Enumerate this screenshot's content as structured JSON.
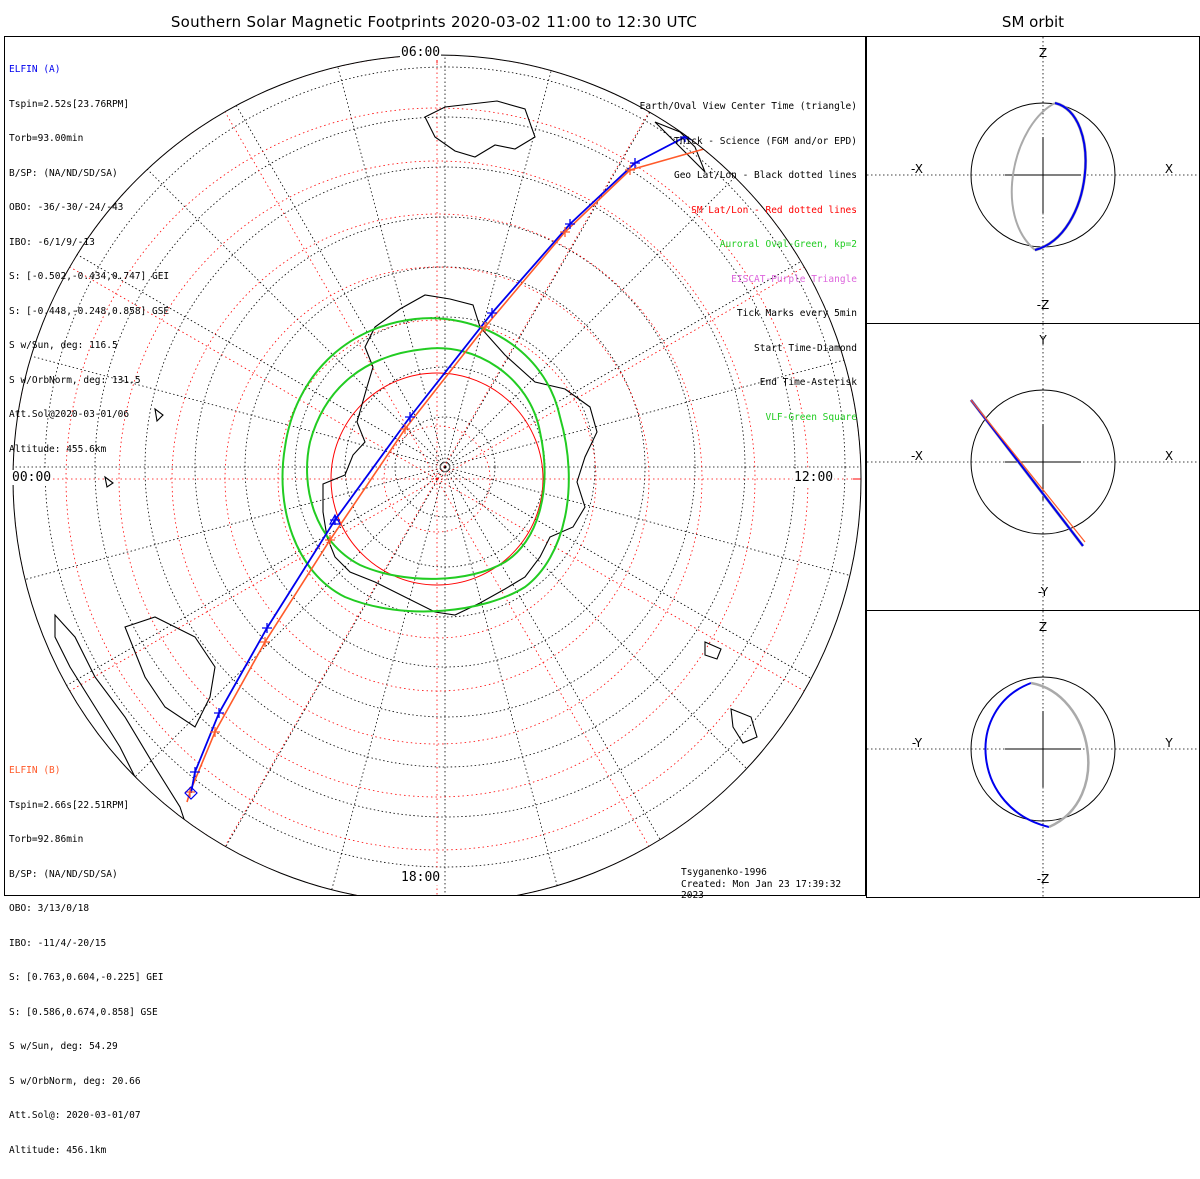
{
  "title": "Southern Solar Magnetic Footprints 2020-03-02 11:00 to 12:30 UTC",
  "orbit_title": "SM orbit",
  "colors": {
    "sat_a": "#0000ee",
    "sat_b": "#ff5a2a",
    "geo_grid": "#000000",
    "sm_grid": "#ff0000",
    "auroral_oval": "#22cc22",
    "eiscat": "#dd66dd",
    "vlf": "#22cc22",
    "orbit_gray": "#aaaaaa"
  },
  "elfin_a": {
    "lines": [
      "ELFIN (A)",
      "Tspin=2.52s[23.76RPM]",
      "Torb=93.00min",
      "B/SP: (NA/ND/SD/SA)",
      "OBO: -36/-30/-24/-43",
      "IBO: -6/1/9/-13",
      "S: [-0.502,-0.434,0.747] GEI",
      "S: [-0.448,-0.248,0.858] GSE",
      "S w/Sun, deg: 116.5",
      "S w/OrbNorm, deg: 131.5",
      "Att.Sol@2020-03-01/06",
      "Altitude: 455.6km"
    ]
  },
  "elfin_b": {
    "lines": [
      "ELFIN (B)",
      "Tspin=2.66s[22.51RPM]",
      "Torb=92.86min",
      "B/SP: (NA/ND/SD/SA)",
      "OBO: 3/13/0/18",
      "IBO: -11/4/-20/15",
      "S: [0.763,0.604,-0.225] GEI",
      "S: [0.586,0.674,0.858] GSE",
      "S w/Sun, deg: 54.29",
      "S w/OrbNorm, deg: 20.66",
      "Att.Sol@: 2020-03-01/07",
      "Altitude: 456.1km"
    ]
  },
  "legend": [
    {
      "text": "Earth/Oval View Center Time (triangle)",
      "color": "#000000"
    },
    {
      "text": "Thick - Science (FGM and/or EPD)",
      "color": "#000000"
    },
    {
      "text": "Geo Lat/Lon - Black dotted lines",
      "color": "#000000"
    },
    {
      "text": "SM Lat/Lon - Red dotted lines",
      "color": "#ff0000"
    },
    {
      "text": "Auroral Oval-Green, kp=2",
      "color": "#22cc22"
    },
    {
      "text": "EISCAT-Purple Triangle",
      "color": "#dd66dd"
    },
    {
      "text": "Tick Marks every 5min",
      "color": "#000000"
    },
    {
      "text": "Start Time-Diamond",
      "color": "#000000"
    },
    {
      "text": "End Time-Asterisk",
      "color": "#000000"
    },
    {
      "text": "VLF-Green Square",
      "color": "#22cc22"
    }
  ],
  "mlt_labels": {
    "top": "06:00",
    "left": "00:00",
    "right": "12:00",
    "bottom": "18:00"
  },
  "credit": {
    "model": "Tsyganenko-1996",
    "created": "Created: Mon Jan 23 17:39:32 2023"
  },
  "orbit_panels": [
    {
      "up": "Z",
      "down": "-Z",
      "left": "-X",
      "right": "X"
    },
    {
      "up": "Y",
      "down": "-Y",
      "left": "-X",
      "right": "X"
    },
    {
      "up": "Z",
      "down": "-Z",
      "left": "-Y",
      "right": "Y"
    }
  ]
}
